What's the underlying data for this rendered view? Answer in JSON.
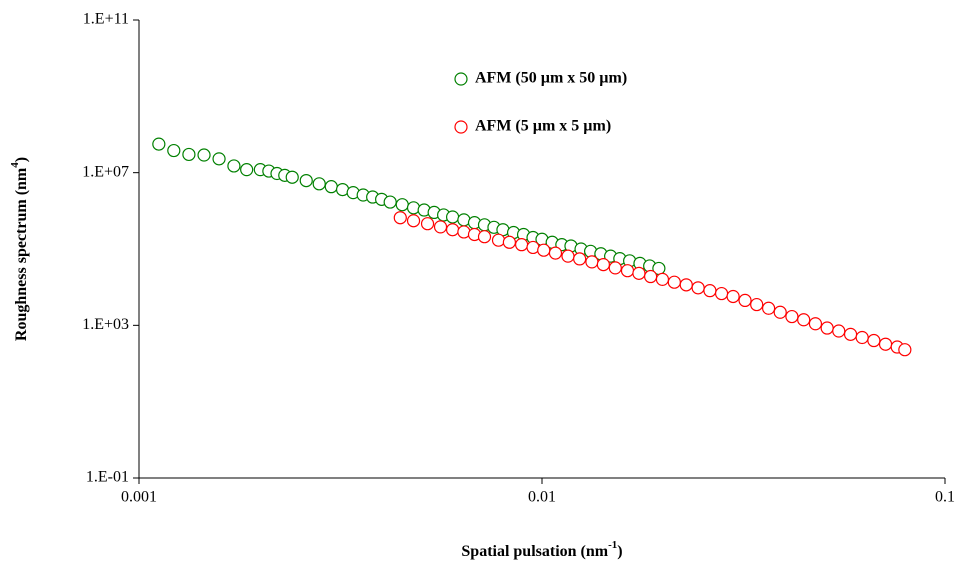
{
  "chart_data": {
    "type": "scatter",
    "x_label": [
      "Spatial pulsation (nm",
      "-1",
      ")"
    ],
    "y_label": [
      "Roughness spectrum (nm",
      "4",
      ")"
    ],
    "log_x": true,
    "log_y": true,
    "grid": false,
    "legend": "top",
    "xlim": [
      0.001,
      0.1
    ],
    "xticks": [
      0.001,
      0.01,
      0.1
    ],
    "ylim": [
      0.1,
      100000000000
    ],
    "yticks": [
      {
        "value": 0.1,
        "label": "1.E-01"
      },
      {
        "value": 1000,
        "label": "1.E+03"
      },
      {
        "value": 10000000,
        "label": "1.E+07"
      },
      {
        "value": 100000000000,
        "label": "1.E+11"
      }
    ],
    "series": [
      {
        "name": "AFM (50 µm x 50 µm)",
        "color": "#008000",
        "x": [
          0.00112,
          0.00122,
          0.00133,
          0.00145,
          0.00158,
          0.00172,
          0.00185,
          0.002,
          0.0021,
          0.0022,
          0.0023,
          0.0024,
          0.0026,
          0.0028,
          0.003,
          0.0032,
          0.0034,
          0.0036,
          0.0038,
          0.004,
          0.0042,
          0.0045,
          0.0048,
          0.0051,
          0.0054,
          0.0057,
          0.006,
          0.0064,
          0.0068,
          0.0072,
          0.0076,
          0.008,
          0.0085,
          0.009,
          0.0095,
          0.01,
          0.0106,
          0.0112,
          0.0118,
          0.0125,
          0.0132,
          0.014,
          0.0148,
          0.0156,
          0.0165,
          0.0175,
          0.0185,
          0.0195
        ],
        "values": [
          56000000,
          38000000,
          30000000,
          29000000,
          23000000,
          15000000,
          12000000,
          12000000,
          11000000,
          9500000,
          8500000,
          7600000,
          6200000,
          5100000,
          4300000,
          3600000,
          3000000,
          2600000,
          2300000,
          2000000,
          1700000,
          1450000,
          1200000,
          1050000,
          910000,
          780000,
          690000,
          580000,
          490000,
          430000,
          370000,
          320000,
          270000,
          240000,
          200000,
          180000,
          150000,
          130000,
          120000,
          100000,
          87000,
          75000,
          65000,
          56000,
          49000,
          42000,
          36000,
          31000
        ]
      },
      {
        "name": "AFM (5 µm x 5 µm)",
        "color": "#ff0000",
        "x": [
          0.00445,
          0.0048,
          0.0052,
          0.0056,
          0.006,
          0.0064,
          0.0068,
          0.0072,
          0.0078,
          0.0083,
          0.0089,
          0.0095,
          0.0101,
          0.0108,
          0.0116,
          0.0124,
          0.0133,
          0.0142,
          0.0152,
          0.0163,
          0.0174,
          0.0186,
          0.0199,
          0.0213,
          0.0228,
          0.0244,
          0.0261,
          0.0279,
          0.0298,
          0.0319,
          0.0341,
          0.0365,
          0.039,
          0.0417,
          0.0446,
          0.0477,
          0.051,
          0.0545,
          0.0583,
          0.0623,
          0.0666,
          0.0712,
          0.0761,
          0.0795
        ],
        "values": [
          660000,
          550000,
          460000,
          380000,
          320000,
          280000,
          240000,
          210000,
          170000,
          150000,
          130000,
          110000,
          93000,
          78000,
          65000,
          55000,
          46000,
          39000,
          32000,
          27000,
          23000,
          19000,
          16000,
          13500,
          11500,
          9600,
          8100,
          6800,
          5700,
          4500,
          3500,
          2800,
          2200,
          1700,
          1400,
          1100,
          850,
          710,
          580,
          480,
          400,
          320,
          270,
          230
        ]
      }
    ]
  }
}
